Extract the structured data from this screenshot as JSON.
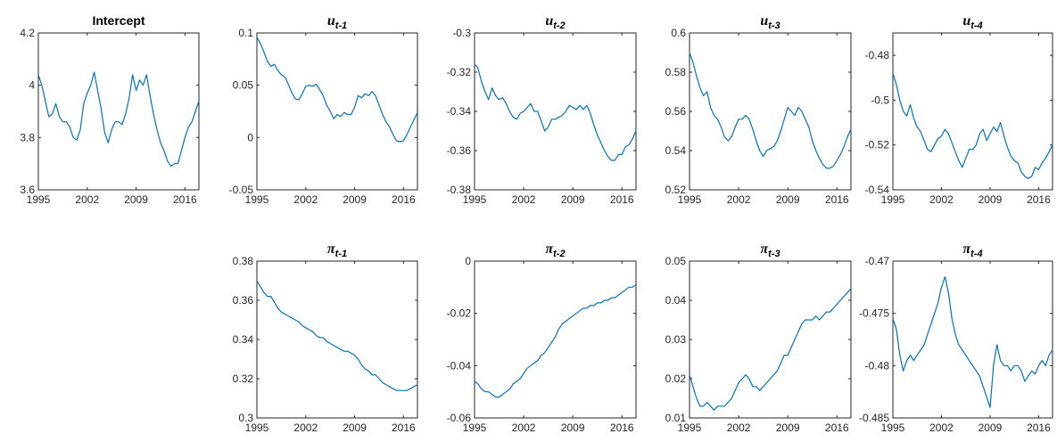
{
  "figure": {
    "line_color": "#0072BD",
    "axis_color": "#262626",
    "background": "#ffffff"
  },
  "chart_data": [
    {
      "type": "line",
      "title": "Intercept",
      "title_symbol": "",
      "title_sub": "",
      "xlim": [
        1995,
        2018
      ],
      "xticks": [
        1995,
        2002,
        2009,
        2016
      ],
      "xtick_labels": [
        "1995",
        "2002",
        "2009",
        "2016"
      ],
      "ylim": [
        3.6,
        4.2
      ],
      "yticks": [
        3.6,
        3.8,
        4.0,
        4.2
      ],
      "ytick_labels": [
        "3.6",
        "3.8",
        "4",
        "4.2"
      ],
      "grid": false,
      "x": [
        1995.0,
        1995.5,
        1996.0,
        1996.5,
        1997.0,
        1997.5,
        1998.0,
        1998.5,
        1999.0,
        1999.5,
        2000.0,
        2000.5,
        2001.0,
        2001.5,
        2002.0,
        2002.5,
        2003.0,
        2003.5,
        2004.0,
        2004.5,
        2005.0,
        2005.5,
        2006.0,
        2006.5,
        2007.0,
        2007.5,
        2008.0,
        2008.5,
        2009.0,
        2009.5,
        2010.0,
        2010.5,
        2011.0,
        2011.5,
        2012.0,
        2012.5,
        2013.0,
        2013.5,
        2014.0,
        2014.5,
        2015.0,
        2015.5,
        2016.0,
        2016.5,
        2017.0,
        2017.5,
        2018.0
      ],
      "y": [
        4.04,
        4.0,
        3.94,
        3.88,
        3.89,
        3.93,
        3.88,
        3.86,
        3.86,
        3.84,
        3.8,
        3.79,
        3.83,
        3.93,
        3.97,
        4.0,
        4.05,
        3.98,
        3.91,
        3.82,
        3.78,
        3.83,
        3.86,
        3.86,
        3.85,
        3.89,
        3.95,
        4.04,
        3.98,
        4.02,
        4.0,
        4.04,
        3.96,
        3.89,
        3.83,
        3.78,
        3.75,
        3.71,
        3.69,
        3.7,
        3.7,
        3.75,
        3.8,
        3.84,
        3.86,
        3.9,
        3.94
      ]
    },
    {
      "type": "line",
      "title": "",
      "title_symbol": "u",
      "title_sub": "t-1",
      "xlim": [
        1995,
        2018
      ],
      "xticks": [
        1995,
        2002,
        2009,
        2016
      ],
      "xtick_labels": [
        "1995",
        "2002",
        "2009",
        "2016"
      ],
      "ylim": [
        -0.05,
        0.1
      ],
      "yticks": [
        -0.05,
        0,
        0.05,
        0.1
      ],
      "ytick_labels": [
        "-0.05",
        "0",
        "0.05",
        "0.1"
      ],
      "grid": false,
      "x": [
        1995.0,
        1995.5,
        1996.0,
        1996.5,
        1997.0,
        1997.5,
        1998.0,
        1998.5,
        1999.0,
        1999.5,
        2000.0,
        2000.5,
        2001.0,
        2001.5,
        2002.0,
        2002.5,
        2003.0,
        2003.5,
        2004.0,
        2004.5,
        2005.0,
        2005.5,
        2006.0,
        2006.5,
        2007.0,
        2007.5,
        2008.0,
        2008.5,
        2009.0,
        2009.5,
        2010.0,
        2010.5,
        2011.0,
        2011.5,
        2012.0,
        2012.5,
        2013.0,
        2013.5,
        2014.0,
        2014.5,
        2015.0,
        2015.5,
        2016.0,
        2016.5,
        2017.0,
        2017.5,
        2018.0
      ],
      "y": [
        0.096,
        0.09,
        0.082,
        0.073,
        0.068,
        0.07,
        0.064,
        0.06,
        0.058,
        0.051,
        0.043,
        0.037,
        0.036,
        0.042,
        0.049,
        0.05,
        0.049,
        0.051,
        0.046,
        0.04,
        0.031,
        0.025,
        0.018,
        0.022,
        0.02,
        0.024,
        0.022,
        0.022,
        0.029,
        0.04,
        0.038,
        0.042,
        0.04,
        0.044,
        0.04,
        0.031,
        0.022,
        0.015,
        0.01,
        0.003,
        -0.003,
        -0.004,
        -0.003,
        0.003,
        0.01,
        0.017,
        0.024
      ]
    },
    {
      "type": "line",
      "title": "",
      "title_symbol": "u",
      "title_sub": "t-2",
      "xlim": [
        1995,
        2018
      ],
      "xticks": [
        1995,
        2002,
        2009,
        2016
      ],
      "xtick_labels": [
        "1995",
        "2002",
        "2009",
        "2016"
      ],
      "ylim": [
        -0.38,
        -0.3
      ],
      "yticks": [
        -0.38,
        -0.36,
        -0.34,
        -0.32,
        -0.3
      ],
      "ytick_labels": [
        "-0.38",
        "-0.36",
        "-0.34",
        "-0.32",
        "-0.3"
      ],
      "grid": false,
      "x": [
        1995.0,
        1995.5,
        1996.0,
        1996.5,
        1997.0,
        1997.5,
        1998.0,
        1998.5,
        1999.0,
        1999.5,
        2000.0,
        2000.5,
        2001.0,
        2001.5,
        2002.0,
        2002.5,
        2003.0,
        2003.5,
        2004.0,
        2004.5,
        2005.0,
        2005.5,
        2006.0,
        2006.5,
        2007.0,
        2007.5,
        2008.0,
        2008.5,
        2009.0,
        2009.5,
        2010.0,
        2010.5,
        2011.0,
        2011.5,
        2012.0,
        2012.5,
        2013.0,
        2013.5,
        2014.0,
        2014.5,
        2015.0,
        2015.5,
        2016.0,
        2016.5,
        2017.0,
        2017.5,
        2018.0
      ],
      "y": [
        -0.316,
        -0.318,
        -0.325,
        -0.33,
        -0.334,
        -0.328,
        -0.332,
        -0.334,
        -0.333,
        -0.336,
        -0.34,
        -0.343,
        -0.344,
        -0.341,
        -0.34,
        -0.338,
        -0.336,
        -0.34,
        -0.34,
        -0.345,
        -0.35,
        -0.348,
        -0.344,
        -0.344,
        -0.343,
        -0.342,
        -0.34,
        -0.337,
        -0.338,
        -0.339,
        -0.337,
        -0.339,
        -0.337,
        -0.341,
        -0.347,
        -0.352,
        -0.356,
        -0.36,
        -0.363,
        -0.365,
        -0.365,
        -0.362,
        -0.362,
        -0.358,
        -0.357,
        -0.354,
        -0.35
      ]
    },
    {
      "type": "line",
      "title": "",
      "title_symbol": "u",
      "title_sub": "t-3",
      "xlim": [
        1995,
        2018
      ],
      "xticks": [
        1995,
        2002,
        2009,
        2016
      ],
      "xtick_labels": [
        "1995",
        "2002",
        "2009",
        "2016"
      ],
      "ylim": [
        0.52,
        0.6
      ],
      "yticks": [
        0.52,
        0.54,
        0.56,
        0.58,
        0.6
      ],
      "ytick_labels": [
        "0.52",
        "0.54",
        "0.56",
        "0.58",
        "0.6"
      ],
      "grid": false,
      "x": [
        1995.0,
        1995.5,
        1996.0,
        1996.5,
        1997.0,
        1997.5,
        1998.0,
        1998.5,
        1999.0,
        1999.5,
        2000.0,
        2000.5,
        2001.0,
        2001.5,
        2002.0,
        2002.5,
        2003.0,
        2003.5,
        2004.0,
        2004.5,
        2005.0,
        2005.5,
        2006.0,
        2006.5,
        2007.0,
        2007.5,
        2008.0,
        2008.5,
        2009.0,
        2009.5,
        2010.0,
        2010.5,
        2011.0,
        2011.5,
        2012.0,
        2012.5,
        2013.0,
        2013.5,
        2014.0,
        2014.5,
        2015.0,
        2015.5,
        2016.0,
        2016.5,
        2017.0,
        2017.5,
        2018.0
      ],
      "y": [
        0.59,
        0.585,
        0.578,
        0.572,
        0.568,
        0.57,
        0.562,
        0.558,
        0.556,
        0.552,
        0.547,
        0.545,
        0.547,
        0.552,
        0.556,
        0.556,
        0.558,
        0.556,
        0.551,
        0.545,
        0.54,
        0.537,
        0.54,
        0.541,
        0.542,
        0.545,
        0.55,
        0.556,
        0.562,
        0.56,
        0.558,
        0.562,
        0.56,
        0.556,
        0.552,
        0.545,
        0.54,
        0.536,
        0.533,
        0.531,
        0.531,
        0.532,
        0.535,
        0.538,
        0.542,
        0.547,
        0.551
      ]
    },
    {
      "type": "line",
      "title": "",
      "title_symbol": "u",
      "title_sub": "t-4",
      "xlim": [
        1995,
        2018
      ],
      "xticks": [
        1995,
        2002,
        2009,
        2016
      ],
      "xtick_labels": [
        "1995",
        "2002",
        "2009",
        "2016"
      ],
      "ylim": [
        -0.54,
        -0.47
      ],
      "yticks": [
        -0.54,
        -0.52,
        -0.5,
        -0.48
      ],
      "ytick_labels": [
        "-0.54",
        "-0.52",
        "-0.5",
        "-0.48"
      ],
      "grid": false,
      "x": [
        1995.0,
        1995.5,
        1996.0,
        1996.5,
        1997.0,
        1997.5,
        1998.0,
        1998.5,
        1999.0,
        1999.5,
        2000.0,
        2000.5,
        2001.0,
        2001.5,
        2002.0,
        2002.5,
        2003.0,
        2003.5,
        2004.0,
        2004.5,
        2005.0,
        2005.5,
        2006.0,
        2006.5,
        2007.0,
        2007.5,
        2008.0,
        2008.5,
        2009.0,
        2009.5,
        2010.0,
        2010.5,
        2011.0,
        2011.5,
        2012.0,
        2012.5,
        2013.0,
        2013.5,
        2014.0,
        2014.5,
        2015.0,
        2015.5,
        2016.0,
        2016.5,
        2017.0,
        2017.5,
        2018.0
      ],
      "y": [
        -0.488,
        -0.493,
        -0.5,
        -0.505,
        -0.507,
        -0.502,
        -0.508,
        -0.512,
        -0.514,
        -0.518,
        -0.522,
        -0.523,
        -0.52,
        -0.517,
        -0.516,
        -0.513,
        -0.515,
        -0.519,
        -0.523,
        -0.527,
        -0.53,
        -0.526,
        -0.522,
        -0.522,
        -0.52,
        -0.515,
        -0.513,
        -0.518,
        -0.515,
        -0.512,
        -0.514,
        -0.51,
        -0.516,
        -0.521,
        -0.525,
        -0.527,
        -0.528,
        -0.532,
        -0.534,
        -0.535,
        -0.534,
        -0.53,
        -0.531,
        -0.528,
        -0.526,
        -0.523,
        -0.52
      ]
    },
    {
      "type": "line",
      "title": "",
      "title_symbol": "π",
      "title_sub": "t-1",
      "xlim": [
        1995,
        2018
      ],
      "xticks": [
        1995,
        2002,
        2009,
        2016
      ],
      "xtick_labels": [
        "1995",
        "2002",
        "2009",
        "2016"
      ],
      "ylim": [
        0.3,
        0.38
      ],
      "yticks": [
        0.3,
        0.32,
        0.34,
        0.36,
        0.38
      ],
      "ytick_labels": [
        "0.3",
        "0.32",
        "0.34",
        "0.36",
        "0.38"
      ],
      "grid": false,
      "x": [
        1995.0,
        1995.5,
        1996.0,
        1996.5,
        1997.0,
        1997.5,
        1998.0,
        1998.5,
        1999.0,
        1999.5,
        2000.0,
        2000.5,
        2001.0,
        2001.5,
        2002.0,
        2002.5,
        2003.0,
        2003.5,
        2004.0,
        2004.5,
        2005.0,
        2005.5,
        2006.0,
        2006.5,
        2007.0,
        2007.5,
        2008.0,
        2008.5,
        2009.0,
        2009.5,
        2010.0,
        2010.5,
        2011.0,
        2011.5,
        2012.0,
        2012.5,
        2013.0,
        2013.5,
        2014.0,
        2014.5,
        2015.0,
        2015.5,
        2016.0,
        2016.5,
        2017.0,
        2017.5,
        2018.0
      ],
      "y": [
        0.37,
        0.367,
        0.364,
        0.362,
        0.362,
        0.359,
        0.356,
        0.354,
        0.353,
        0.352,
        0.351,
        0.35,
        0.349,
        0.347,
        0.346,
        0.345,
        0.344,
        0.342,
        0.341,
        0.341,
        0.339,
        0.338,
        0.337,
        0.336,
        0.335,
        0.334,
        0.334,
        0.333,
        0.332,
        0.33,
        0.327,
        0.325,
        0.324,
        0.322,
        0.322,
        0.32,
        0.318,
        0.317,
        0.316,
        0.315,
        0.314,
        0.314,
        0.314,
        0.314,
        0.315,
        0.316,
        0.317
      ]
    },
    {
      "type": "line",
      "title": "",
      "title_symbol": "π",
      "title_sub": "t-2",
      "xlim": [
        1995,
        2018
      ],
      "xticks": [
        1995,
        2002,
        2009,
        2016
      ],
      "xtick_labels": [
        "1995",
        "2002",
        "2009",
        "2016"
      ],
      "ylim": [
        -0.06,
        0
      ],
      "yticks": [
        -0.06,
        -0.04,
        -0.02,
        0
      ],
      "ytick_labels": [
        "-0.06",
        "-0.04",
        "-0.02",
        "0"
      ],
      "grid": false,
      "x": [
        1995.0,
        1995.5,
        1996.0,
        1996.5,
        1997.0,
        1997.5,
        1998.0,
        1998.5,
        1999.0,
        1999.5,
        2000.0,
        2000.5,
        2001.0,
        2001.5,
        2002.0,
        2002.5,
        2003.0,
        2003.5,
        2004.0,
        2004.5,
        2005.0,
        2005.5,
        2006.0,
        2006.5,
        2007.0,
        2007.5,
        2008.0,
        2008.5,
        2009.0,
        2009.5,
        2010.0,
        2010.5,
        2011.0,
        2011.5,
        2012.0,
        2012.5,
        2013.0,
        2013.5,
        2014.0,
        2014.5,
        2015.0,
        2015.5,
        2016.0,
        2016.5,
        2017.0,
        2017.5,
        2018.0
      ],
      "y": [
        -0.046,
        -0.047,
        -0.049,
        -0.05,
        -0.05,
        -0.051,
        -0.052,
        -0.052,
        -0.051,
        -0.05,
        -0.049,
        -0.047,
        -0.046,
        -0.045,
        -0.043,
        -0.041,
        -0.04,
        -0.039,
        -0.038,
        -0.036,
        -0.035,
        -0.033,
        -0.031,
        -0.029,
        -0.026,
        -0.024,
        -0.023,
        -0.022,
        -0.021,
        -0.02,
        -0.019,
        -0.018,
        -0.018,
        -0.017,
        -0.017,
        -0.016,
        -0.016,
        -0.015,
        -0.015,
        -0.014,
        -0.014,
        -0.013,
        -0.012,
        -0.011,
        -0.01,
        -0.01,
        -0.009
      ]
    },
    {
      "type": "line",
      "title": "",
      "title_symbol": "π",
      "title_sub": "t-3",
      "xlim": [
        1995,
        2018
      ],
      "xticks": [
        1995,
        2002,
        2009,
        2016
      ],
      "xtick_labels": [
        "1995",
        "2002",
        "2009",
        "2016"
      ],
      "ylim": [
        0.01,
        0.05
      ],
      "yticks": [
        0.01,
        0.02,
        0.03,
        0.04,
        0.05
      ],
      "ytick_labels": [
        "0.01",
        "0.02",
        "0.03",
        "0.04",
        "0.05"
      ],
      "grid": false,
      "x": [
        1995.0,
        1995.5,
        1996.0,
        1996.5,
        1997.0,
        1997.5,
        1998.0,
        1998.5,
        1999.0,
        1999.5,
        2000.0,
        2000.5,
        2001.0,
        2001.5,
        2002.0,
        2002.5,
        2003.0,
        2003.5,
        2004.0,
        2004.5,
        2005.0,
        2005.5,
        2006.0,
        2006.5,
        2007.0,
        2007.5,
        2008.0,
        2008.5,
        2009.0,
        2009.5,
        2010.0,
        2010.5,
        2011.0,
        2011.5,
        2012.0,
        2012.5,
        2013.0,
        2013.5,
        2014.0,
        2014.5,
        2015.0,
        2015.5,
        2016.0,
        2016.5,
        2017.0,
        2017.5,
        2018.0
      ],
      "y": [
        0.021,
        0.018,
        0.015,
        0.013,
        0.013,
        0.014,
        0.013,
        0.012,
        0.013,
        0.013,
        0.013,
        0.014,
        0.015,
        0.017,
        0.019,
        0.02,
        0.021,
        0.02,
        0.018,
        0.018,
        0.017,
        0.018,
        0.019,
        0.02,
        0.021,
        0.022,
        0.024,
        0.026,
        0.026,
        0.028,
        0.03,
        0.032,
        0.034,
        0.035,
        0.035,
        0.035,
        0.036,
        0.035,
        0.036,
        0.037,
        0.037,
        0.038,
        0.039,
        0.04,
        0.041,
        0.042,
        0.043
      ]
    },
    {
      "type": "line",
      "title": "",
      "title_symbol": "π",
      "title_sub": "t-4",
      "xlim": [
        1995,
        2018
      ],
      "xticks": [
        1995,
        2002,
        2009,
        2016
      ],
      "xtick_labels": [
        "1995",
        "2002",
        "2009",
        "2016"
      ],
      "ylim": [
        -0.485,
        -0.47
      ],
      "yticks": [
        -0.485,
        -0.48,
        -0.475,
        -0.47
      ],
      "ytick_labels": [
        "-0.485",
        "-0.48",
        "-0.475",
        "-0.47"
      ],
      "grid": false,
      "x": [
        1995.0,
        1995.5,
        1996.0,
        1996.5,
        1997.0,
        1997.5,
        1998.0,
        1998.5,
        1999.0,
        1999.5,
        2000.0,
        2000.5,
        2001.0,
        2001.5,
        2002.0,
        2002.5,
        2003.0,
        2003.5,
        2004.0,
        2004.5,
        2005.0,
        2005.5,
        2006.0,
        2006.5,
        2007.0,
        2007.5,
        2008.0,
        2008.5,
        2009.0,
        2009.5,
        2010.0,
        2010.5,
        2011.0,
        2011.5,
        2012.0,
        2012.5,
        2013.0,
        2013.5,
        2014.0,
        2014.5,
        2015.0,
        2015.5,
        2016.0,
        2016.5,
        2017.0,
        2017.5,
        2018.0
      ],
      "y": [
        -0.4755,
        -0.4765,
        -0.479,
        -0.4805,
        -0.4795,
        -0.479,
        -0.4795,
        -0.479,
        -0.4785,
        -0.478,
        -0.477,
        -0.476,
        -0.475,
        -0.474,
        -0.4725,
        -0.4715,
        -0.473,
        -0.4755,
        -0.477,
        -0.478,
        -0.4785,
        -0.479,
        -0.4795,
        -0.48,
        -0.4805,
        -0.481,
        -0.482,
        -0.483,
        -0.484,
        -0.48,
        -0.478,
        -0.4795,
        -0.48,
        -0.48,
        -0.4805,
        -0.48,
        -0.48,
        -0.4805,
        -0.4815,
        -0.481,
        -0.4805,
        -0.4808,
        -0.48,
        -0.4795,
        -0.48,
        -0.479,
        -0.4785
      ]
    }
  ]
}
